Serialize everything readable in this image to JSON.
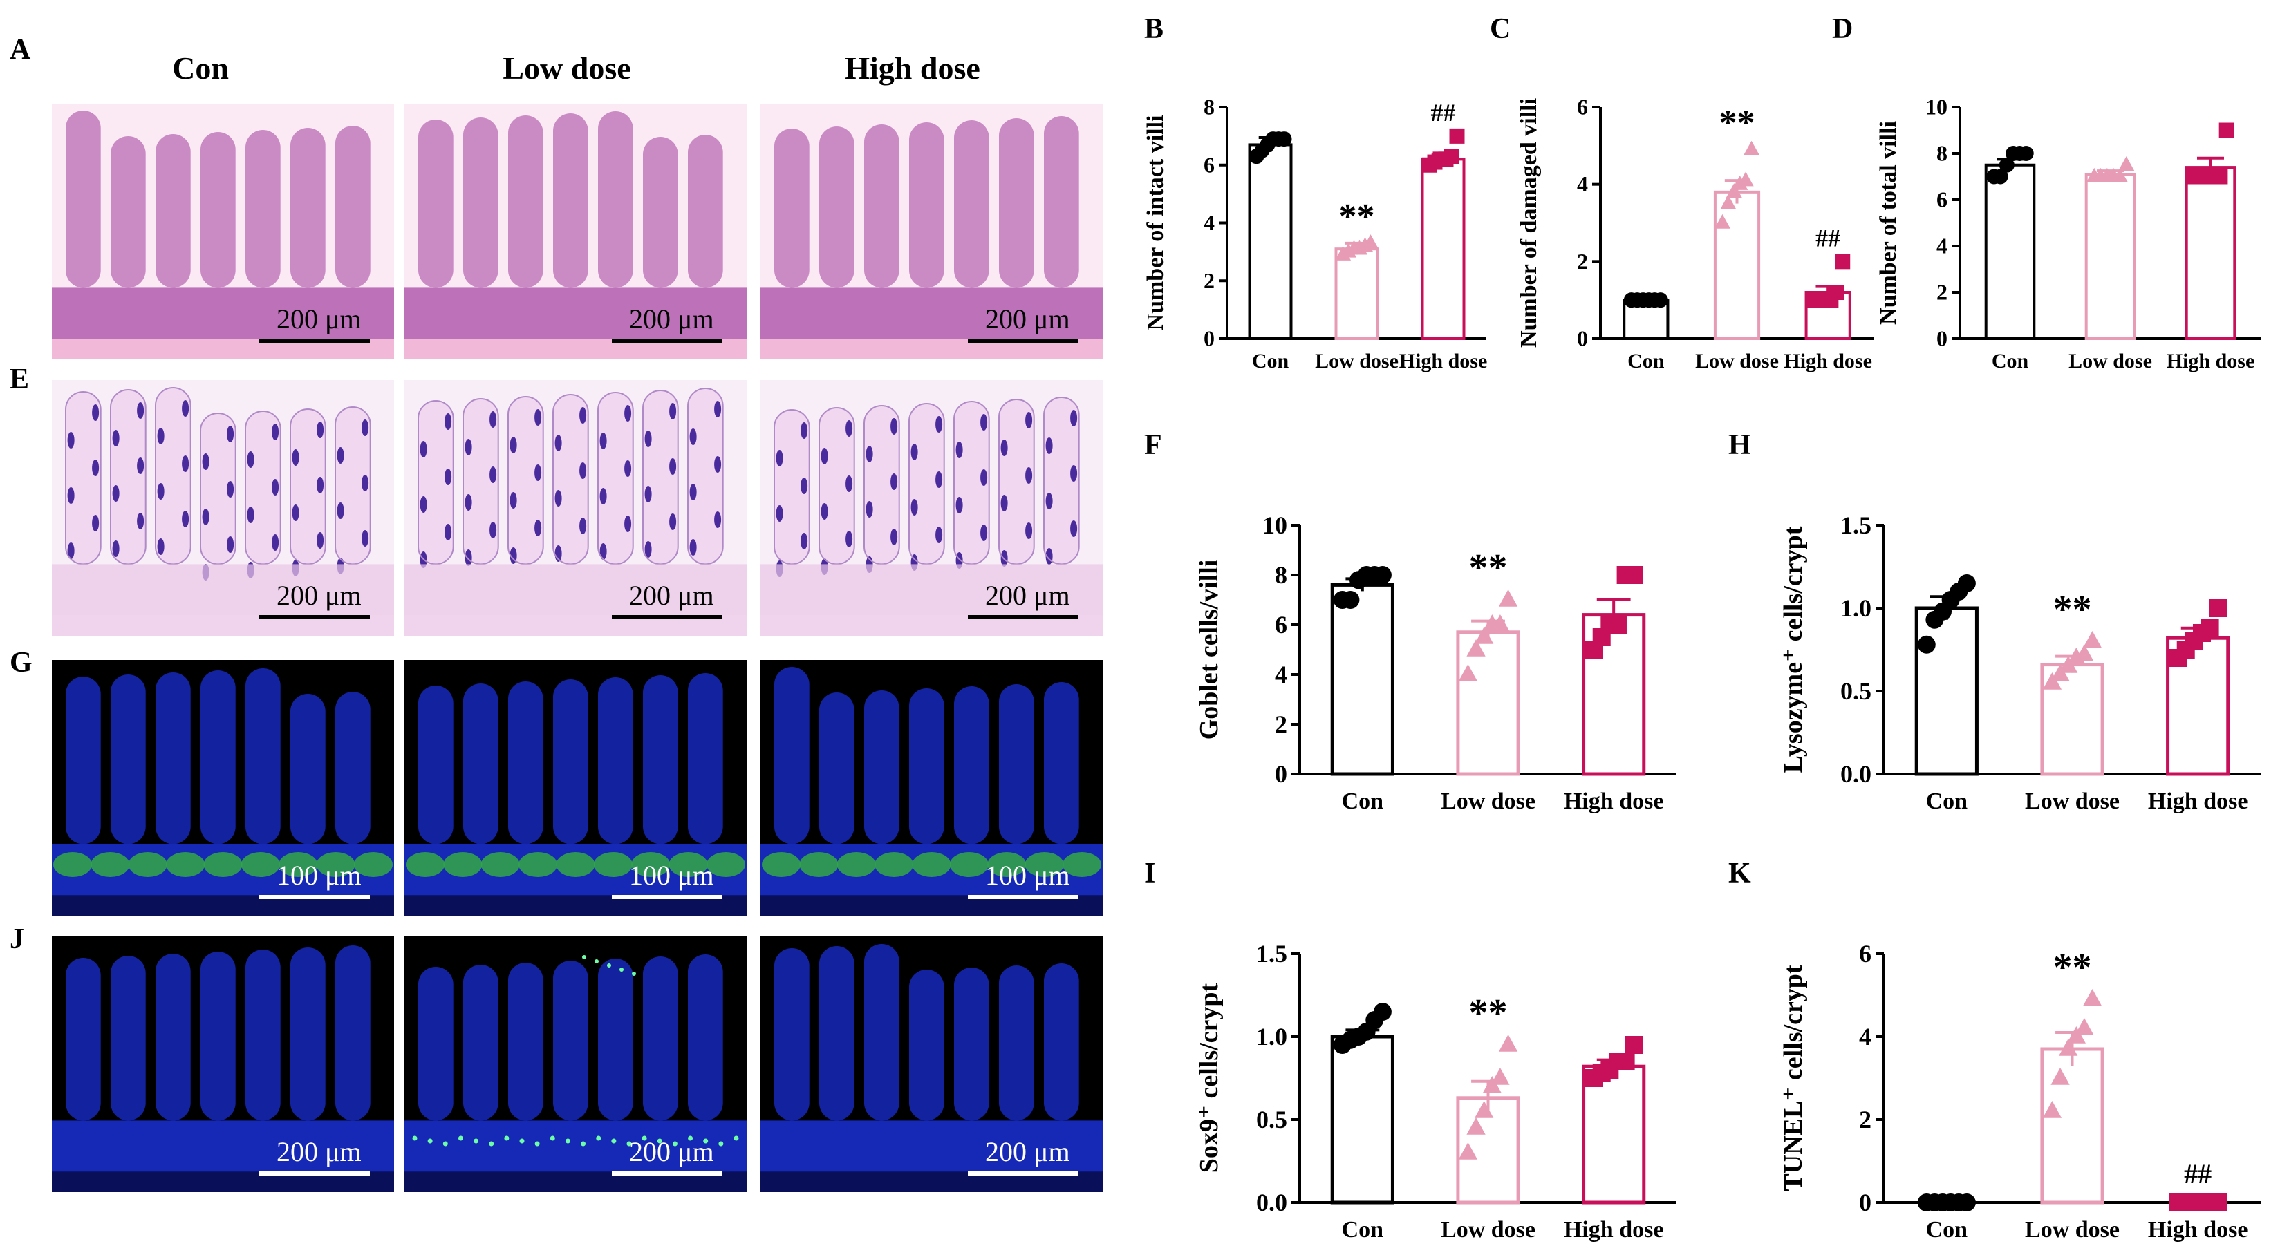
{
  "panel_letters": [
    "A",
    "B",
    "C",
    "D",
    "E",
    "F",
    "G",
    "H",
    "I",
    "J",
    "K"
  ],
  "column_titles": [
    "Con",
    "Low dose",
    "High dose"
  ],
  "scale_bars": {
    "he": "200 μm",
    "pas": "200 μm",
    "lyz": "100 μm",
    "tunel": "200 μm"
  },
  "colors": {
    "con": "#000000",
    "low": "#e89bb4",
    "high": "#c8105a",
    "he_bg": "#f2b8d8",
    "he_tissue": "#a23d9f",
    "pas_bg": "#f1d7ef",
    "pas_goblet": "#4a2b9e",
    "fluor_bg": "#000000",
    "dapi": "#1a2fd6",
    "lyz_green": "#32a845",
    "tunel_green": "#6effa6"
  },
  "chart_data": [
    {
      "id": "B",
      "type": "bar",
      "categories": [
        "Con",
        "Low dose",
        "High dose"
      ],
      "values": [
        6.7,
        3.1,
        6.2
      ],
      "errors": [
        0.25,
        0.2,
        0.15
      ],
      "points": [
        [
          6.3,
          6.5,
          6.7,
          6.9,
          6.9,
          6.9
        ],
        [
          2.9,
          3.0,
          3.1,
          3.1,
          3.2,
          3.3
        ],
        [
          6.0,
          6.1,
          6.2,
          6.2,
          6.3,
          7.0
        ]
      ],
      "ylabel": "Number of intact villi",
      "ylim": [
        0,
        8
      ],
      "yticks": [
        "0",
        "2",
        "4",
        "6",
        "8"
      ],
      "annotations": [
        "",
        "**",
        "##"
      ]
    },
    {
      "id": "C",
      "type": "bar",
      "categories": [
        "Con",
        "Low dose",
        "High dose"
      ],
      "values": [
        1.0,
        3.8,
        1.2
      ],
      "errors": [
        0.0,
        0.3,
        0.15
      ],
      "points": [
        [
          1.0,
          1.0,
          1.0,
          1.0,
          1.0,
          1.0
        ],
        [
          3.0,
          3.5,
          3.8,
          4.0,
          4.1,
          4.9
        ],
        [
          1.0,
          1.0,
          1.0,
          1.0,
          1.2,
          2.0
        ]
      ],
      "ylabel": "Number of damaged villi",
      "ylim": [
        0,
        6
      ],
      "yticks": [
        "0",
        "2",
        "4",
        "6"
      ],
      "annotations": [
        "",
        "**",
        "##"
      ]
    },
    {
      "id": "D",
      "type": "bar",
      "categories": [
        "Con",
        "Low dose",
        "High dose"
      ],
      "values": [
        7.5,
        7.1,
        7.4
      ],
      "errors": [
        0.25,
        0.15,
        0.4
      ],
      "points": [
        [
          7.0,
          7.0,
          7.5,
          8.0,
          8.0,
          8.0
        ],
        [
          7.0,
          7.0,
          7.0,
          7.0,
          7.0,
          7.5
        ],
        [
          7.0,
          7.0,
          7.0,
          7.0,
          7.0,
          9.0
        ]
      ],
      "ylabel": "Number of total villi",
      "ylim": [
        0,
        10
      ],
      "yticks": [
        "0",
        "2",
        "4",
        "6",
        "8",
        "10"
      ],
      "annotations": [
        "",
        "",
        ""
      ]
    },
    {
      "id": "F",
      "type": "bar",
      "categories": [
        "Con",
        "Low dose",
        "High dose"
      ],
      "values": [
        7.6,
        5.7,
        6.4
      ],
      "errors": [
        0.25,
        0.45,
        0.6
      ],
      "points": [
        [
          7.0,
          7.0,
          7.8,
          8.0,
          8.0,
          8.0
        ],
        [
          4.0,
          5.0,
          5.5,
          6.0,
          6.0,
          7.0
        ],
        [
          5.0,
          5.5,
          6.0,
          6.0,
          8.0,
          8.0
        ]
      ],
      "ylabel": "Goblet cells/villi",
      "ylim": [
        0,
        10
      ],
      "yticks": [
        "0",
        "2",
        "4",
        "6",
        "8",
        "10"
      ],
      "annotations": [
        "",
        "**",
        ""
      ]
    },
    {
      "id": "H",
      "type": "bar",
      "categories": [
        "Con",
        "Low dose",
        "High dose"
      ],
      "values": [
        1.0,
        0.66,
        0.82
      ],
      "errors": [
        0.07,
        0.05,
        0.06
      ],
      "points": [
        [
          0.78,
          0.93,
          0.98,
          1.05,
          1.1,
          1.15
        ],
        [
          0.55,
          0.6,
          0.65,
          0.7,
          0.72,
          0.8
        ],
        [
          0.7,
          0.75,
          0.8,
          0.85,
          0.88,
          1.0
        ]
      ],
      "ylabel": "Lysozyme⁺ cells/crypt",
      "ylim": [
        0,
        1.5
      ],
      "yticks": [
        "0.0",
        "0.5",
        "1.0",
        "1.5"
      ],
      "annotations": [
        "",
        "**",
        ""
      ]
    },
    {
      "id": "I",
      "type": "bar",
      "categories": [
        "Con",
        "Low dose",
        "High dose"
      ],
      "values": [
        1.0,
        0.63,
        0.82
      ],
      "errors": [
        0.04,
        0.1,
        0.04
      ],
      "points": [
        [
          0.95,
          0.98,
          1.0,
          1.03,
          1.1,
          1.15
        ],
        [
          0.3,
          0.45,
          0.55,
          0.7,
          0.75,
          0.95
        ],
        [
          0.75,
          0.78,
          0.8,
          0.85,
          0.85,
          0.95
        ]
      ],
      "ylabel": "Sox9⁺ cells/crypt",
      "ylim": [
        0,
        1.5
      ],
      "yticks": [
        "0.0",
        "0.5",
        "1.0",
        "1.5"
      ],
      "annotations": [
        "",
        "**",
        ""
      ]
    },
    {
      "id": "K",
      "type": "bar",
      "categories": [
        "Con",
        "Low dose",
        "High dose"
      ],
      "values": [
        0.0,
        3.7,
        0.0
      ],
      "errors": [
        0.0,
        0.4,
        0.0
      ],
      "points": [
        [
          0,
          0,
          0,
          0,
          0,
          0
        ],
        [
          2.2,
          3.0,
          3.7,
          4.0,
          4.2,
          4.9
        ],
        [
          0,
          0,
          0,
          0,
          0,
          0
        ]
      ],
      "ylabel": "TUNEL⁺ cells/crypt",
      "ylim": [
        0,
        6
      ],
      "yticks": [
        "0",
        "2",
        "4",
        "6"
      ],
      "annotations": [
        "",
        "**",
        "##"
      ]
    }
  ]
}
